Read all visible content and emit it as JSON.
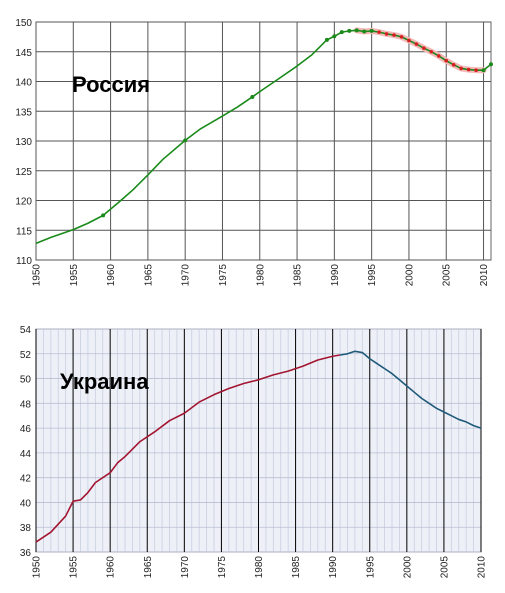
{
  "chart_data": [
    {
      "type": "line",
      "title": "Россия",
      "xlabel": "",
      "ylabel": "",
      "xlim": [
        1950,
        2011
      ],
      "ylim": [
        110,
        150
      ],
      "grid": true,
      "x_ticks": [
        "1950",
        "1955",
        "1960",
        "1965",
        "1970",
        "1975",
        "1980",
        "1985",
        "1990",
        "1995",
        "2000",
        "2005",
        "2010"
      ],
      "y_ticks": [
        "110",
        "115",
        "120",
        "125",
        "130",
        "135",
        "140",
        "145",
        "150"
      ],
      "colors": {
        "line": "#1a8a1a",
        "marker_green": "#1a8a1a",
        "marker_red": "#d42020",
        "highlight": "#f5b8b8",
        "grid": "#555555",
        "background": "#ffffff"
      },
      "series": [
        {
          "points": [
            [
              1950,
              112.8
            ],
            [
              1952,
              113.8
            ],
            [
              1955,
              115.1
            ],
            [
              1957,
              116.2
            ],
            [
              1959,
              117.5
            ],
            [
              1961,
              119.6
            ],
            [
              1963,
              121.8
            ],
            [
              1965,
              124.3
            ],
            [
              1967,
              126.9
            ],
            [
              1970,
              130.1
            ],
            [
              1972,
              132.0
            ],
            [
              1975,
              134.2
            ],
            [
              1977,
              135.7
            ],
            [
              1979,
              137.4
            ],
            [
              1980,
              138.3
            ],
            [
              1982,
              140.0
            ],
            [
              1985,
              142.6
            ],
            [
              1987,
              144.5
            ],
            [
              1989,
              147.0
            ],
            [
              1990,
              147.6
            ],
            [
              1991,
              148.3
            ],
            [
              1992,
              148.5
            ],
            [
              1993,
              148.6
            ],
            [
              1994,
              148.4
            ],
            [
              1995,
              148.5
            ],
            [
              1996,
              148.3
            ],
            [
              1997,
              148.0
            ],
            [
              1998,
              147.8
            ],
            [
              1999,
              147.5
            ],
            [
              2000,
              146.9
            ],
            [
              2001,
              146.3
            ],
            [
              2002,
              145.6
            ],
            [
              2003,
              145.0
            ],
            [
              2004,
              144.3
            ],
            [
              2005,
              143.5
            ],
            [
              2006,
              142.8
            ],
            [
              2007,
              142.2
            ],
            [
              2008,
              142.0
            ],
            [
              2009,
              141.9
            ],
            [
              2010,
              141.9
            ],
            [
              2011,
              142.9
            ]
          ],
          "green_markers": [
            1959,
            1970,
            1979,
            1989,
            1990,
            1991,
            1992,
            1993,
            1994,
            1995,
            2010,
            2011
          ],
          "red_markers": [
            1996,
            1997,
            1998,
            1999,
            2000,
            2001,
            2002,
            2003,
            2004,
            2005,
            2006,
            2007,
            2008,
            2009
          ],
          "highlight_range": [
            1993,
            2010
          ]
        }
      ]
    },
    {
      "type": "line",
      "title": "Украина",
      "xlabel": "",
      "ylabel": "",
      "xlim": [
        1950,
        2010
      ],
      "ylim": [
        36,
        54
      ],
      "grid": true,
      "x_ticks": [
        "1950",
        "1955",
        "1960",
        "1965",
        "1970",
        "1975",
        "1980",
        "1985",
        "1990",
        "1995",
        "2000",
        "2005",
        "2010"
      ],
      "y_ticks": [
        "36",
        "38",
        "40",
        "42",
        "44",
        "46",
        "48",
        "50",
        "52",
        "54"
      ],
      "colors": {
        "line_rising": "#a31530",
        "line_falling": "#1f5a7a",
        "grid_major": "#000000",
        "grid_minor": "#c8cfe0",
        "background": "#eef0f8"
      },
      "series": [
        {
          "color": "#a31530",
          "points": [
            [
              1950,
              36.8
            ],
            [
              1952,
              37.6
            ],
            [
              1954,
              38.9
            ],
            [
              1955,
              40.1
            ],
            [
              1956,
              40.2
            ],
            [
              1957,
              40.8
            ],
            [
              1958,
              41.6
            ],
            [
              1960,
              42.4
            ],
            [
              1961,
              43.2
            ],
            [
              1962,
              43.7
            ],
            [
              1964,
              44.9
            ],
            [
              1966,
              45.7
            ],
            [
              1968,
              46.6
            ],
            [
              1970,
              47.2
            ],
            [
              1972,
              48.1
            ],
            [
              1974,
              48.7
            ],
            [
              1976,
              49.2
            ],
            [
              1978,
              49.6
            ],
            [
              1980,
              49.9
            ],
            [
              1982,
              50.3
            ],
            [
              1984,
              50.6
            ],
            [
              1986,
              51.0
            ],
            [
              1988,
              51.5
            ],
            [
              1990,
              51.8
            ],
            [
              1991,
              51.9
            ]
          ]
        },
        {
          "color": "#1f5a7a",
          "points": [
            [
              1991,
              51.9
            ],
            [
              1992,
              52.0
            ],
            [
              1993,
              52.2
            ],
            [
              1994,
              52.1
            ],
            [
              1995,
              51.6
            ],
            [
              1996,
              51.2
            ],
            [
              1997,
              50.8
            ],
            [
              1998,
              50.4
            ],
            [
              1999,
              49.9
            ],
            [
              2000,
              49.4
            ],
            [
              2001,
              48.9
            ],
            [
              2002,
              48.4
            ],
            [
              2003,
              48.0
            ],
            [
              2004,
              47.6
            ],
            [
              2005,
              47.3
            ],
            [
              2006,
              47.0
            ],
            [
              2007,
              46.7
            ],
            [
              2008,
              46.5
            ],
            [
              2009,
              46.2
            ],
            [
              2010,
              46.0
            ]
          ]
        }
      ]
    }
  ]
}
